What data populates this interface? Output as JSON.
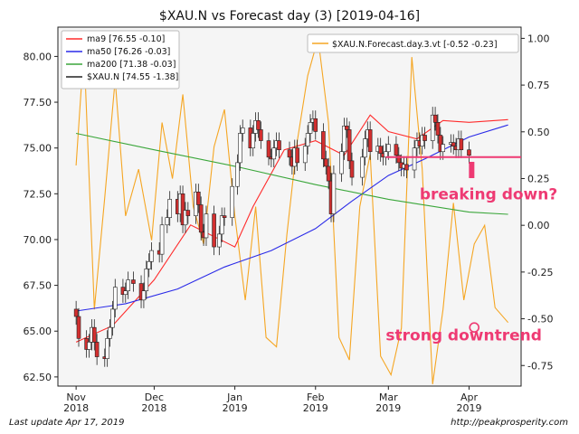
{
  "chart_data": {
    "type": "line",
    "title": "$XAU.N vs Forecast day (3)  [2019-04-16]",
    "x_ticks": [
      {
        "date": "2018-11-01",
        "label": "Nov\n2018"
      },
      {
        "date": "2018-12-01",
        "label": "Dec\n2018"
      },
      {
        "date": "2019-01-01",
        "label": "Jan\n2019"
      },
      {
        "date": "2019-02-01",
        "label": "Feb\n2019"
      },
      {
        "date": "2019-03-01",
        "label": "Mar\n2019"
      },
      {
        "date": "2019-04-01",
        "label": "Apr\n2019"
      }
    ],
    "xlim": [
      "2018-10-25",
      "2019-04-21"
    ],
    "y_left": {
      "lim": [
        62.0,
        81.6
      ],
      "ticks": [
        "62.50",
        "65.00",
        "67.50",
        "70.00",
        "72.50",
        "75.00",
        "77.50",
        "80.00"
      ]
    },
    "y_right": {
      "lim": [
        -0.86,
        1.06
      ],
      "ticks": [
        "-0.75",
        "-0.50",
        "-0.25",
        "0.00",
        "0.25",
        "0.50",
        "0.75",
        "1.00"
      ]
    },
    "grid": false,
    "legend_left": {
      "placement": "top-left",
      "entries": [
        {
          "label": "ma9 [76.55 -0.10]",
          "color": "#ff2b2b"
        },
        {
          "label": "ma50 [76.26 -0.03]",
          "color": "#2a2ae8"
        },
        {
          "label": "ma200 [71.38 -0.03]",
          "color": "#3aa63a"
        },
        {
          "label": "$XAU.N [74.55 -1.38]",
          "color": "#222222"
        }
      ]
    },
    "legend_right": {
      "placement": "top-right",
      "entries": [
        {
          "label": "$XAU.N.Forecast.day.3.vt [-0.52 -0.23]",
          "color": "#f5a623"
        }
      ]
    },
    "series": [
      {
        "name": "$XAU.N",
        "type": "candlestick",
        "color_up": "#ffffff",
        "color_down": "#d32f2f",
        "axis": "left",
        "dates": [
          "2018-11-01",
          "2018-11-02",
          "2018-11-05",
          "2018-11-06",
          "2018-11-07",
          "2018-11-08",
          "2018-11-09",
          "2018-11-12",
          "2018-11-13",
          "2018-11-14",
          "2018-11-15",
          "2018-11-16",
          "2018-11-19",
          "2018-11-20",
          "2018-11-21",
          "2018-11-23",
          "2018-11-26",
          "2018-11-27",
          "2018-11-28",
          "2018-11-29",
          "2018-11-30",
          "2018-12-03",
          "2018-12-04",
          "2018-12-06",
          "2018-12-07",
          "2018-12-10",
          "2018-12-11",
          "2018-12-12",
          "2018-12-13",
          "2018-12-14",
          "2018-12-17",
          "2018-12-18",
          "2018-12-19",
          "2018-12-20",
          "2018-12-21",
          "2018-12-24",
          "2018-12-26",
          "2018-12-27",
          "2018-12-28",
          "2018-12-31",
          "2019-01-02",
          "2019-01-03",
          "2019-01-04",
          "2019-01-07",
          "2019-01-08",
          "2019-01-09",
          "2019-01-10",
          "2019-01-11",
          "2019-01-14",
          "2019-01-15",
          "2019-01-16",
          "2019-01-17",
          "2019-01-18",
          "2019-01-22",
          "2019-01-23",
          "2019-01-24",
          "2019-01-25",
          "2019-01-28",
          "2019-01-29",
          "2019-01-30",
          "2019-01-31",
          "2019-02-01",
          "2019-02-04",
          "2019-02-05",
          "2019-02-06",
          "2019-02-07",
          "2019-02-08",
          "2019-02-11",
          "2019-02-12",
          "2019-02-13",
          "2019-02-14",
          "2019-02-15",
          "2019-02-19",
          "2019-02-20",
          "2019-02-21",
          "2019-02-22",
          "2019-02-25",
          "2019-02-26",
          "2019-02-27",
          "2019-02-28",
          "2019-03-01",
          "2019-03-04",
          "2019-03-05",
          "2019-03-06",
          "2019-03-07",
          "2019-03-08",
          "2019-03-11",
          "2019-03-12",
          "2019-03-13",
          "2019-03-14",
          "2019-03-15",
          "2019-03-18",
          "2019-03-19",
          "2019-03-20",
          "2019-03-21",
          "2019-03-22",
          "2019-03-25",
          "2019-03-26",
          "2019-03-27",
          "2019-03-28",
          "2019-03-29",
          "2019-04-01"
        ],
        "close": [
          65.8,
          64.6,
          64.0,
          64.4,
          65.2,
          64.4,
          63.6,
          63.5,
          64.6,
          65.2,
          66.2,
          67.4,
          67.0,
          67.2,
          67.8,
          67.6,
          66.7,
          67.2,
          68.4,
          68.8,
          69.4,
          69.2,
          70.8,
          71.2,
          72.2,
          71.4,
          72.5,
          70.8,
          71.6,
          71.3,
          72.6,
          71.9,
          70.4,
          70.1,
          71.4,
          69.6,
          70.3,
          71.3,
          71.2,
          72.9,
          74.2,
          75.8,
          76.1,
          75.0,
          75.8,
          76.5,
          76.0,
          75.4,
          74.5,
          74.4,
          75.0,
          75.4,
          74.9,
          74.5,
          74.0,
          75.0,
          74.2,
          75.1,
          75.8,
          76.4,
          76.6,
          75.9,
          74.4,
          74.0,
          73.2,
          71.4,
          73.6,
          74.8,
          76.2,
          76.0,
          74.3,
          73.4,
          74.5,
          75.5,
          76.0,
          74.8,
          75.1,
          74.7,
          74.5,
          74.8,
          75.2,
          74.6,
          74.2,
          73.9,
          74.1,
          73.8,
          75.0,
          75.4,
          75.1,
          75.7,
          75.4,
          76.8,
          76.4,
          75.7,
          74.8,
          75.2,
          75.3,
          75.1,
          74.9,
          75.5,
          74.9,
          74.6
        ],
        "open": [
          66.2,
          65.8,
          64.6,
          64.0,
          64.4,
          65.2,
          64.4,
          63.6,
          63.5,
          64.6,
          65.2,
          66.2,
          67.4,
          67.0,
          67.2,
          67.8,
          67.6,
          66.7,
          67.2,
          68.4,
          68.8,
          69.4,
          69.2,
          70.8,
          71.2,
          72.2,
          71.4,
          72.5,
          70.8,
          71.6,
          71.3,
          72.6,
          71.9,
          70.4,
          70.1,
          71.4,
          69.6,
          70.3,
          71.3,
          71.2,
          72.9,
          74.2,
          75.8,
          76.1,
          75.0,
          75.8,
          76.5,
          76.0,
          75.4,
          74.5,
          74.4,
          75.0,
          75.4,
          74.9,
          74.5,
          74.0,
          75.0,
          74.2,
          75.1,
          75.8,
          76.4,
          76.6,
          75.9,
          74.4,
          74.0,
          73.2,
          71.4,
          73.6,
          74.8,
          76.2,
          76.0,
          74.3,
          73.4,
          74.5,
          75.5,
          76.0,
          74.8,
          75.1,
          74.7,
          74.5,
          74.8,
          75.2,
          74.6,
          74.2,
          73.9,
          74.1,
          73.8,
          75.0,
          75.4,
          75.1,
          75.7,
          75.4,
          76.8,
          76.4,
          75.7,
          74.8,
          75.2,
          75.3,
          75.1,
          74.9,
          75.5,
          74.9
        ]
      },
      {
        "name": "ma9",
        "type": "line",
        "color": "#ff2b2b",
        "axis": "left",
        "x": [
          "2018-11-01",
          "2018-11-15",
          "2018-12-01",
          "2018-12-15",
          "2019-01-01",
          "2019-01-08",
          "2019-01-20",
          "2019-02-01",
          "2019-02-12",
          "2019-02-22",
          "2019-03-01",
          "2019-03-12",
          "2019-03-22",
          "2019-04-01",
          "2019-04-16"
        ],
        "y": [
          64.4,
          65.3,
          67.8,
          70.8,
          69.6,
          71.8,
          74.9,
          75.4,
          74.6,
          76.8,
          75.9,
          75.5,
          76.5,
          76.4,
          76.55
        ]
      },
      {
        "name": "ma50",
        "type": "line",
        "color": "#2a2ae8",
        "axis": "left",
        "x": [
          "2018-11-01",
          "2018-11-20",
          "2018-12-10",
          "2018-12-28",
          "2019-01-15",
          "2019-02-01",
          "2019-02-15",
          "2019-03-01",
          "2019-03-15",
          "2019-04-01",
          "2019-04-16"
        ],
        "y": [
          66.1,
          66.5,
          67.3,
          68.5,
          69.4,
          70.6,
          72.1,
          73.5,
          74.4,
          75.6,
          76.26
        ]
      },
      {
        "name": "ma200",
        "type": "line",
        "color": "#3aa63a",
        "axis": "left",
        "x": [
          "2018-11-01",
          "2018-12-01",
          "2019-01-01",
          "2019-02-01",
          "2019-03-01",
          "2019-04-01",
          "2019-04-16"
        ],
        "y": [
          75.8,
          74.9,
          74.0,
          73.0,
          72.2,
          71.5,
          71.38
        ]
      },
      {
        "name": "$XAU.N.Forecast.day.3.vt",
        "type": "line",
        "color": "#f5a623",
        "axis": "right",
        "x": [
          "2018-11-01",
          "2018-11-04",
          "2018-11-08",
          "2018-11-12",
          "2018-11-16",
          "2018-11-20",
          "2018-11-25",
          "2018-11-30",
          "2018-12-04",
          "2018-12-08",
          "2018-12-12",
          "2018-12-16",
          "2018-12-20",
          "2018-12-24",
          "2018-12-28",
          "2019-01-01",
          "2019-01-05",
          "2019-01-09",
          "2019-01-13",
          "2019-01-17",
          "2019-01-21",
          "2019-01-25",
          "2019-01-29",
          "2019-02-02",
          "2019-02-06",
          "2019-02-10",
          "2019-02-14",
          "2019-02-18",
          "2019-02-22",
          "2019-02-26",
          "2019-03-02",
          "2019-03-06",
          "2019-03-10",
          "2019-03-14",
          "2019-03-18",
          "2019-03-22",
          "2019-03-26",
          "2019-03-30",
          "2019-04-03",
          "2019-04-07",
          "2019-04-11",
          "2019-04-16"
        ],
        "y": [
          0.32,
          0.95,
          -0.45,
          0.15,
          0.78,
          0.05,
          0.3,
          -0.08,
          0.55,
          0.25,
          0.7,
          0.1,
          -0.1,
          0.42,
          0.62,
          0.05,
          -0.4,
          0.1,
          -0.6,
          -0.65,
          -0.05,
          0.45,
          0.8,
          1.0,
          0.55,
          -0.6,
          -0.72,
          0.1,
          0.38,
          -0.7,
          -0.8,
          -0.55,
          0.9,
          0.3,
          -0.85,
          -0.45,
          0.12,
          -0.4,
          -0.1,
          0.0,
          -0.44,
          -0.52
        ]
      }
    ],
    "annotations": [
      {
        "text": "breaking down?",
        "color": "#ee3a73",
        "date": "2019-03-13",
        "y": 72.2
      },
      {
        "text": "strong downtrend",
        "color": "#ee3a73",
        "date": "2019-02-28",
        "y": 64.5
      },
      {
        "kind": "hline",
        "color": "#ee3a73",
        "x_start": "2019-02-28",
        "x_end": "2019-04-21",
        "y": 74.5
      },
      {
        "kind": "marker",
        "color": "#ee3a73",
        "date": "2019-04-02",
        "y": 73.8
      },
      {
        "kind": "circle",
        "color": "#ee3a73",
        "date": "2019-04-03",
        "y": 65.2
      }
    ]
  },
  "footer": {
    "left": "Last update Apr 17, 2019",
    "right": "http://peakprosperity.com"
  },
  "colors": {
    "plot_bg": "#f5f5f5",
    "accent": "#ee3a73"
  }
}
